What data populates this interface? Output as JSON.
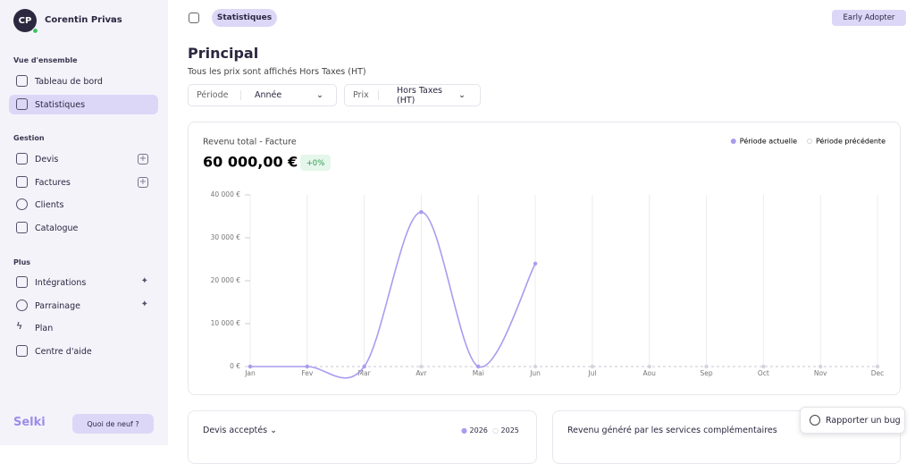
{
  "sidebar": {
    "user": {
      "initials": "CP",
      "name": "Corentin Privas"
    },
    "sections": [
      {
        "title": "Vue d'ensemble",
        "items": [
          "Tableau de bord",
          "Statistiques"
        ]
      },
      {
        "title": "Gestion",
        "items": [
          "Devis",
          "Factures",
          "Clients",
          "Catalogue"
        ]
      },
      {
        "title": "Plus",
        "items": [
          "Intégrations",
          "Parrainage",
          "Plan",
          "Centre d'aide"
        ]
      }
    ],
    "brand": "Selki",
    "news": "Quoi de neuf ?"
  },
  "header": {
    "tab": "Statistiques",
    "badge": "Early Adopter"
  },
  "page": {
    "title": "Principal",
    "subtitle": "Tous les prix sont affichés Hors Taxes (HT)",
    "filters": [
      {
        "label": "Période",
        "value": "Année"
      },
      {
        "label": "Prix",
        "value": "Hors Taxes (HT)"
      }
    ]
  },
  "chart_data": {
    "type": "line",
    "title": "Revenu total - Facture",
    "total": "60 000,00 €",
    "change": "+0%",
    "categories": [
      "Jan",
      "Fev",
      "Mar",
      "Avr",
      "Mai",
      "Jun",
      "Jul",
      "Aou",
      "Sep",
      "Oct",
      "Nov",
      "Dec"
    ],
    "series": [
      {
        "name": "Période actuelle",
        "color": "#a99cf0",
        "values": [
          0,
          0,
          0,
          36000,
          0,
          24000,
          null,
          null,
          null,
          null,
          null,
          null
        ]
      },
      {
        "name": "Période précédente",
        "color": "#d4d4dc",
        "values": [
          0,
          0,
          0,
          0,
          0,
          0,
          0,
          0,
          0,
          0,
          0,
          0
        ]
      }
    ],
    "ylim": [
      0,
      40000
    ],
    "yticks": [
      {
        "value": 0,
        "label": "0 €"
      },
      {
        "value": 10000,
        "label": "10 000 €"
      },
      {
        "value": 20000,
        "label": "20 000 €"
      },
      {
        "value": 30000,
        "label": "30 000 €"
      },
      {
        "value": 40000,
        "label": "40 000 €"
      }
    ],
    "grid": true,
    "legend": "top-right"
  },
  "cards": [
    {
      "title": "Devis acceptés",
      "legend": [
        "2026",
        "2025"
      ]
    },
    {
      "title": "Revenu généré par les services complémentaires"
    }
  ],
  "bug_button": "Rapporter un bug"
}
